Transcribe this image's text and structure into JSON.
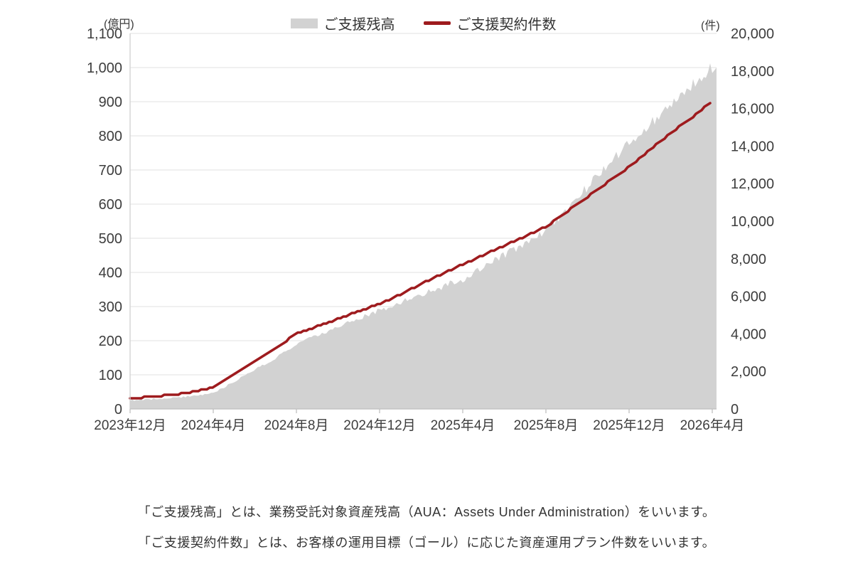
{
  "legend": {
    "items": [
      {
        "label": "ご支援残高",
        "type": "area",
        "color": "#d2d2d2"
      },
      {
        "label": "ご支援契約件数",
        "type": "line",
        "color": "#9e1b1e"
      }
    ]
  },
  "chart_data": {
    "type": "area+line combo, dual axis",
    "x": [
      "2023年12月",
      "2024年1月",
      "2024年2月",
      "2024年3月",
      "2024年4月",
      "2024年5月",
      "2024年6月",
      "2024年7月",
      "2024年8月",
      "2024年9月",
      "2024年10月",
      "2024年11月",
      "2024年12月",
      "2025年1月",
      "2025年2月",
      "2025年3月",
      "2025年4月",
      "2025年5月",
      "2025年6月",
      "2025年7月",
      "2025年8月",
      "2025年9月",
      "2025年10月",
      "2025年11月",
      "2025年12月",
      "2026年1月",
      "2026年2月",
      "2026年3月",
      "2026年4月"
    ],
    "x_tick_indices": [
      0,
      4,
      8,
      12,
      16,
      20,
      24,
      28
    ],
    "x_tick_labels": [
      "2023年12月",
      "2024年4月",
      "2024年8月",
      "2024年12月",
      "2025年4月",
      "2025年8月",
      "2025年12月",
      "2026年4月"
    ],
    "left_axis": {
      "unit_label": "(億円)",
      "min": 0,
      "max": 1100,
      "step": 100
    },
    "right_axis": {
      "unit_label": "(件)",
      "min": 0,
      "max": 20000,
      "step": 2000
    },
    "grid": true,
    "legend_position": "top-center",
    "series": [
      {
        "name": "ご支援残高",
        "type": "area",
        "axis": "left",
        "unit": "億円",
        "color": "#d2d2d2",
        "values": [
          25,
          28,
          32,
          38,
          46,
          80,
          115,
          150,
          190,
          215,
          240,
          265,
          290,
          312,
          335,
          358,
          380,
          415,
          450,
          487,
          525,
          585,
          650,
          715,
          780,
          835,
          890,
          945,
          1000
        ]
      },
      {
        "name": "ご支援契約件数",
        "type": "line",
        "axis": "right",
        "unit": "件",
        "color": "#9e1b1e",
        "values": [
          550,
          650,
          750,
          900,
          1150,
          1850,
          2550,
          3250,
          4000,
          4400,
          4800,
          5200,
          5600,
          6100,
          6650,
          7200,
          7700,
          8200,
          8700,
          9200,
          9700,
          10500,
          11300,
          12100,
          12900,
          13800,
          14700,
          15500,
          16400
        ]
      }
    ]
  },
  "footnotes": {
    "line1": "「ご支援残高」とは、業務受託対象資産残高（AUA：Assets Under Administration）をいいます。",
    "line2": "「ご支援契約件数」とは、お客様の運用目標（ゴール）に応じた資産運用プラン件数をいいます。"
  }
}
